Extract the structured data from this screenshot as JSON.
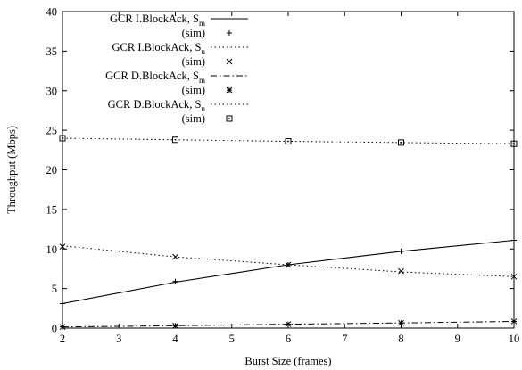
{
  "chart_data": {
    "type": "line",
    "xlabel": "Burst Size (frames)",
    "ylabel": "Throughput (Mbps)",
    "xlim": [
      2,
      10
    ],
    "ylim": [
      0,
      40
    ],
    "xticks": [
      2,
      3,
      4,
      5,
      6,
      7,
      8,
      9,
      10
    ],
    "yticks": [
      0,
      5,
      10,
      15,
      20,
      25,
      30,
      35,
      40
    ],
    "xtick_labels": [
      "2",
      "3",
      "4",
      "5",
      "6",
      "7",
      "8",
      "9",
      "10"
    ],
    "ytick_labels": [
      "0",
      "5",
      "10",
      "15",
      "20",
      "25",
      "30",
      "35",
      "40"
    ],
    "grid": false,
    "legend_position": "top-left",
    "series": [
      {
        "name": "GCR I.BlockAck, S",
        "subscript": "m",
        "line_style": "solid",
        "sim_label": "(sim)",
        "sim_marker": "plus",
        "x": [
          2,
          4,
          6,
          8,
          10
        ],
        "model": [
          3.1,
          5.8,
          8.0,
          9.7,
          11.1
        ],
        "sim": [
          3.1,
          5.9,
          8.0,
          9.7,
          11.1
        ]
      },
      {
        "name": "GCR I.BlockAck, S",
        "subscript": "u",
        "line_style": "dotted",
        "sim_label": "(sim)",
        "sim_marker": "x",
        "x": [
          2,
          4,
          6,
          8,
          10
        ],
        "model": [
          10.4,
          9.0,
          8.0,
          7.1,
          6.5
        ],
        "sim": [
          10.3,
          9.0,
          8.0,
          7.2,
          6.5
        ]
      },
      {
        "name": "GCR D.BlockAck, S",
        "subscript": "m",
        "line_style": "dash-dot",
        "sim_label": "(sim)",
        "sim_marker": "asterisk",
        "x": [
          2,
          4,
          6,
          8,
          10
        ],
        "model": [
          0.15,
          0.3,
          0.5,
          0.65,
          0.85
        ],
        "sim": [
          0.15,
          0.3,
          0.5,
          0.65,
          0.85
        ]
      },
      {
        "name": "GCR D.BlockAck, S",
        "subscript": "u",
        "line_style": "dotted",
        "sim_label": "(sim)",
        "sim_marker": "dotted-square",
        "x": [
          2,
          4,
          6,
          8,
          10
        ],
        "model": [
          24.0,
          23.8,
          23.6,
          23.45,
          23.3
        ],
        "sim": [
          24.0,
          23.8,
          23.6,
          23.45,
          23.3
        ]
      }
    ]
  }
}
